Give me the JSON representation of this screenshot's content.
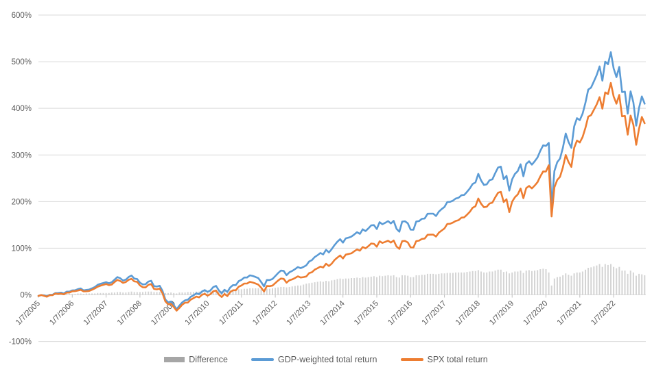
{
  "chart_data": {
    "type": "line+bar combo (cumulative total return)",
    "title": "",
    "x_axis": {
      "tick_labels": [
        "1/7/2005",
        "1/7/2006",
        "1/7/2007",
        "1/7/2008",
        "1/7/2009",
        "1/7/2010",
        "1/7/2011",
        "1/7/2012",
        "1/7/2013",
        "1/7/2014",
        "1/7/2015",
        "1/7/2016",
        "1/7/2017",
        "1/7/2018",
        "1/7/2019",
        "1/7/2020",
        "1/7/2021",
        "1/7/2022"
      ],
      "points_per_year": 12,
      "label_rotation_deg": -45
    },
    "y_axis": {
      "tick_labels": [
        "600%",
        "500%",
        "400%",
        "300%",
        "200%",
        "100%",
        "0%",
        "-100%"
      ],
      "tick_values": [
        600,
        500,
        400,
        300,
        200,
        100,
        0,
        -100
      ],
      "min": -100,
      "max": 600,
      "unit": "%"
    },
    "grid": true,
    "legend_position": "bottom",
    "colors": {
      "difference_bar": "#D4D4D4",
      "difference_legend": "#A6A6A6",
      "gdp_weighted": "#5B9BD5",
      "spx": "#ED7D31",
      "gridline": "#D9D9D9",
      "tick_mark": "#BFBFBF",
      "axis_text": "#595959"
    },
    "series": [
      {
        "name": "Difference",
        "type": "bar",
        "values": [
          0,
          0,
          1,
          1,
          1,
          1,
          1,
          2,
          2,
          2,
          2,
          2,
          2,
          2,
          3,
          3,
          2,
          3,
          3,
          3,
          3,
          4,
          4,
          4,
          4,
          4,
          5,
          5,
          6,
          6,
          5,
          5,
          6,
          7,
          6,
          6,
          6,
          6,
          7,
          7,
          7,
          6,
          6,
          6,
          5,
          4,
          4,
          5,
          4,
          3,
          5,
          5,
          5,
          6,
          6,
          6,
          7,
          7,
          7,
          8,
          8,
          8,
          9,
          10,
          9,
          8,
          9,
          9,
          10,
          11,
          11,
          12,
          12,
          13,
          13,
          14,
          14,
          14,
          14,
          12,
          11,
          13,
          13,
          14,
          15,
          16,
          17,
          17,
          16,
          17,
          18,
          19,
          20,
          20,
          22,
          24,
          25,
          26,
          27,
          28,
          29,
          28,
          30,
          29,
          31,
          32,
          34,
          35,
          34,
          35,
          35,
          36,
          36,
          37,
          36,
          38,
          37,
          38,
          39,
          40,
          38,
          41,
          40,
          41,
          42,
          41,
          42,
          38,
          37,
          42,
          42,
          41,
          38,
          38,
          42,
          42,
          43,
          43,
          45,
          45,
          45,
          44,
          45,
          46,
          46,
          47,
          47,
          47,
          48,
          48,
          48,
          48,
          49,
          50,
          51,
          51,
          53,
          50,
          48,
          48,
          50,
          50,
          52,
          54,
          54,
          49,
          50,
          46,
          48,
          50,
          50,
          52,
          47,
          52,
          53,
          51,
          52,
          53,
          55,
          56,
          55,
          48,
          20,
          35,
          38,
          39,
          42,
          46,
          43,
          41,
          46,
          48,
          48,
          50,
          54,
          58,
          59,
          61,
          63,
          66,
          60,
          66,
          64,
          66,
          60,
          57,
          60,
          52,
          52,
          45,
          52,
          48,
          41,
          45,
          44,
          42
        ]
      },
      {
        "name": "GDP-weighted total return",
        "type": "line",
        "values": [
          -2.4,
          -0.4,
          -1.2,
          -3,
          0.1,
          0.2,
          3.8,
          3.9,
          4.7,
          3,
          6.9,
          6.9,
          9.6,
          9.9,
          12.2,
          13.7,
          9.5,
          10.6,
          11.3,
          13.9,
          16.8,
          21.5,
          23.7,
          25.4,
          27.2,
          24.8,
          27.1,
          32.5,
          38,
          35.7,
          30.7,
          32.6,
          38.3,
          41.4,
          34.8,
          33.9,
          26.2,
          22.3,
          22.8,
          28.5,
          30.1,
          18.7,
          17.8,
          19.4,
          8.3,
          -10,
          -16.2,
          -14.3,
          -22.1,
          -30.9,
          -23.1,
          -16.2,
          -11.8,
          -10.6,
          -4.3,
          -1.1,
          3.3,
          1.5,
          7.2,
          10.1,
          6.4,
          9.5,
          16.6,
          19.3,
          9.6,
          3.3,
          10.9,
          6.3,
          15.9,
          20.9,
          20.9,
          29.3,
          32.1,
          37.2,
          37.2,
          41.9,
          40.5,
          38.4,
          35.9,
          27.3,
          18.2,
          31.9,
          31.7,
          33.9,
          40.3,
          46.7,
          52,
          51.2,
          42.1,
          48.3,
          51.2,
          55.2,
          59.7,
          57.2,
          60,
          63.3,
          71.5,
          74.5,
          81.1,
          85.1,
          89.7,
          86.6,
          96.7,
          90.9,
          97.9,
          106.6,
          113.9,
          119.4,
          112,
          121.2,
          122.7,
          125,
          129.4,
          134.4,
          130.7,
          140.5,
          136.7,
          142.5,
          149,
          149.5,
          141.2,
          155.8,
          151.4,
          154.5,
          158.2,
          153.1,
          158.6,
          141.5,
          135.5,
          157.2,
          157.8,
          153.4,
          139.8,
          139.6,
          157.3,
          158.2,
          163,
          163.7,
          173.8,
          174.1,
          174.1,
          169,
          178.3,
          183.9,
          188.4,
          199.1,
          199.4,
          202,
          206.5,
          208.1,
          213.5,
          214.3,
          220.9,
          228.2,
          237.8,
          241,
          259.6,
          245.3,
          235.8,
          236.9,
          245.9,
          247.7,
          260.8,
          273,
          274.9,
          248,
          255.1,
          223.5,
          247.8,
          259.4,
          265.4,
          280.1,
          254.2,
          280.8,
          286.5,
          279.2,
          286.4,
          294.7,
          309.1,
          320.7,
          319.5,
          326,
          188,
          265.5,
          284.4,
          292.3,
          315.1,
          346,
          327.8,
          315.4,
          361.2,
          379,
          374.7,
          388.6,
          411.9,
          440.2,
          444.5,
          457.7,
          471.6,
          489.9,
          459.3,
          500.2,
          494.5,
          520.4,
          485.6,
          466.9,
          488.8,
          434.8,
          435.8,
          388.6,
          436.4,
          412.5,
          362.8,
          401,
          425.5,
          410
        ]
      },
      {
        "name": "SPX total return",
        "type": "line",
        "values": [
          -2.4,
          -0.4,
          -2.2,
          -4,
          -0.9,
          -0.8,
          2.8,
          1.9,
          2.7,
          1,
          4.9,
          4.9,
          7.6,
          7.9,
          9.2,
          10.7,
          7.5,
          7.6,
          8.3,
          10.9,
          13.8,
          17.5,
          19.7,
          21.4,
          23.2,
          20.8,
          22.1,
          27.5,
          32,
          29.7,
          25.7,
          27.6,
          32.3,
          34.4,
          28.8,
          27.9,
          20.2,
          16.3,
          15.8,
          21.5,
          23.1,
          12.7,
          11.8,
          13.4,
          3.3,
          -14,
          -20.2,
          -19.3,
          -26.1,
          -33.9,
          -28.1,
          -21.2,
          -16.8,
          -16.6,
          -10.3,
          -7.1,
          -3.7,
          -5.5,
          0.2,
          2.1,
          -1.6,
          1.5,
          7.6,
          9.3,
          0.6,
          -4.7,
          1.9,
          -2.7,
          5.9,
          9.9,
          9.9,
          17.3,
          20.1,
          24.2,
          24.2,
          27.9,
          26.5,
          24.4,
          21.9,
          15.3,
          7.2,
          18.9,
          18.7,
          19.9,
          25.3,
          30.7,
          35,
          34.2,
          26.1,
          31.3,
          33.2,
          36.2,
          39.7,
          37.2,
          38,
          39.3,
          46.5,
          48.5,
          54.1,
          57.1,
          60.7,
          58.6,
          66.7,
          61.9,
          66.9,
          74.6,
          79.9,
          84.4,
          78,
          86.2,
          87.7,
          89,
          93.4,
          97.4,
          94.7,
          102.5,
          99.7,
          104.5,
          110,
          109.5,
          103.2,
          114.8,
          111.4,
          113.5,
          116.2,
          112.1,
          116.6,
          103.5,
          98.5,
          115.2,
          115.8,
          112.4,
          101.8,
          101.6,
          115.3,
          116.2,
          120,
          120.7,
          128.8,
          129.1,
          129.1,
          125,
          133.3,
          137.9,
          142.4,
          152.1,
          152.4,
          155,
          158.5,
          160.1,
          165.5,
          166.3,
          171.9,
          178.2,
          186.8,
          190,
          206.6,
          195.3,
          187.8,
          188.9,
          195.9,
          197.7,
          208.8,
          219,
          220.9,
          199,
          205.1,
          177.5,
          199.8,
          209.4,
          215.4,
          228.1,
          207.2,
          228.8,
          233.5,
          228.2,
          234.4,
          241.7,
          254.1,
          264.7,
          264.5,
          278,
          168,
          230.5,
          246.4,
          253.3,
          273.1,
          300,
          284.8,
          274.4,
          315.2,
          331,
          326.7,
          338.6,
          357.9,
          382.2,
          385.5,
          396.7,
          408.6,
          423.9,
          399.3,
          434.2,
          430.5,
          454.4,
          425.6,
          409.9,
          428.8,
          382.8,
          383.8,
          343.6,
          384.4,
          364.5,
          321.8,
          356,
          381.5,
          368
        ]
      }
    ]
  },
  "legend": {
    "difference_label": "Difference",
    "gdp_label": "GDP-weighted total return",
    "spx_label": "SPX total return"
  }
}
